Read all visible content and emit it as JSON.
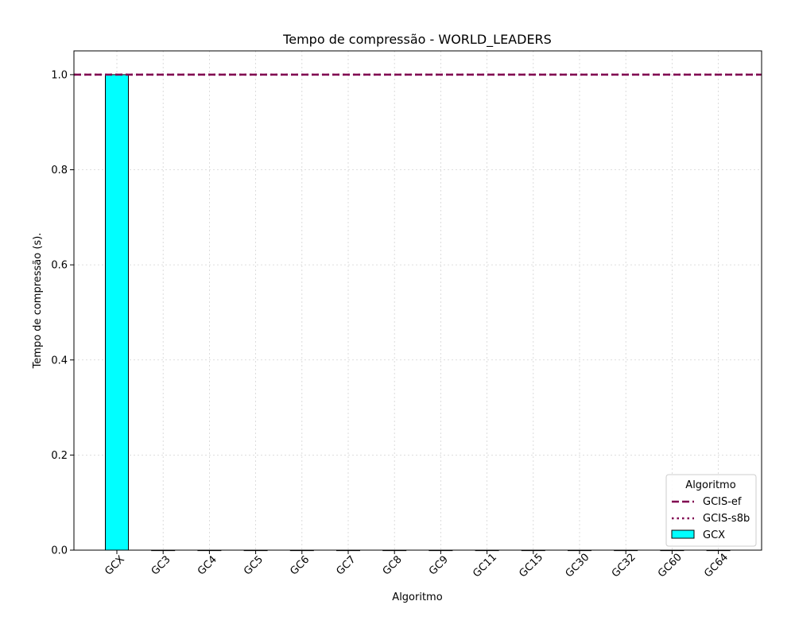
{
  "chart_data": {
    "type": "bar",
    "title": "Tempo de compressão -  WORLD_LEADERS",
    "xlabel": "Algoritmo",
    "ylabel": "Tempo de compressão (s).",
    "categories": [
      "GCX",
      "GC3",
      "GC4",
      "GC5",
      "GC6",
      "GC7",
      "GC8",
      "GC9",
      "GC11",
      "GC15",
      "GC30",
      "GC32",
      "GC60",
      "GC64"
    ],
    "series": [
      {
        "name": "GCX",
        "values": [
          1.0,
          0,
          0,
          0,
          0,
          0,
          0,
          0,
          0,
          0,
          0,
          0,
          0,
          0
        ],
        "color": "#00ffff"
      }
    ],
    "reference_lines": [
      {
        "name": "GCIS-ef",
        "value": 1.0,
        "style": "dashed",
        "color": "#800050"
      },
      {
        "name": "GCIS-s8b",
        "value": 1.0,
        "style": "dotted",
        "color": "#800050"
      }
    ],
    "ylim": [
      0,
      1.05
    ],
    "yticks": [
      "0.0",
      "0.2",
      "0.4",
      "0.6",
      "0.8",
      "1.0"
    ],
    "grid": true,
    "legend": {
      "title": "Algoritmo",
      "placement": "bottom-right"
    }
  }
}
